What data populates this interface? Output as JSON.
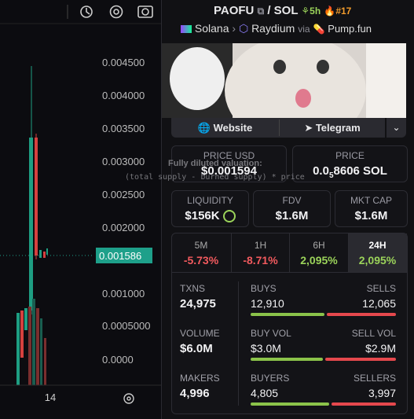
{
  "chart_panel": {
    "price_labels": [
      "0.004500",
      "0.004000",
      "0.003500",
      "0.003000",
      "0.002500",
      "0.002000",
      "0.001000",
      "0.0005000",
      "0.0000"
    ],
    "current_price": "0.001586",
    "time_label": "14"
  },
  "header": {
    "token": "PAOFU",
    "separator": "/",
    "quote": "SOL",
    "trending_age": "5h",
    "rank": "#17",
    "chain": "Solana",
    "dex": "Raydium",
    "via": "via",
    "launchpad": "Pump.fun"
  },
  "links": {
    "website": "Website",
    "telegram": "Telegram"
  },
  "tooltip": {
    "title": "Fully diluted valuation:",
    "formula": "(total supply - burned supply) * price"
  },
  "prices": {
    "usd_label": "PRICE USD",
    "usd_value": "$0.001594",
    "native_label": "PRICE",
    "native_prefix": "0.0",
    "native_zeros": "5",
    "native_value": "8606 SOL"
  },
  "metrics": [
    {
      "label": "LIQUIDITY",
      "value": "$156K"
    },
    {
      "label": "FDV",
      "value": "$1.6M"
    },
    {
      "label": "MKT CAP",
      "value": "$1.6M"
    }
  ],
  "timeframes": [
    {
      "label": "5M",
      "change": "-5.73%"
    },
    {
      "label": "1H",
      "change": "-8.71%"
    },
    {
      "label": "6H",
      "change": "2,095%"
    },
    {
      "label": "24H",
      "change": "2,095%"
    }
  ],
  "stats": [
    {
      "label": "TXNS",
      "value": "24,975",
      "left_label": "BUYS",
      "left_value": "12,910",
      "right_label": "SELLS",
      "right_value": "12,065"
    },
    {
      "label": "VOLUME",
      "value": "$6.0M",
      "left_label": "BUY VOL",
      "left_value": "$3.0M",
      "right_label": "SELL VOL",
      "right_value": "$2.9M"
    },
    {
      "label": "MAKERS",
      "value": "4,996",
      "left_label": "BUYERS",
      "left_value": "4,805",
      "right_label": "SELLERS",
      "right_value": "3,997"
    }
  ]
}
